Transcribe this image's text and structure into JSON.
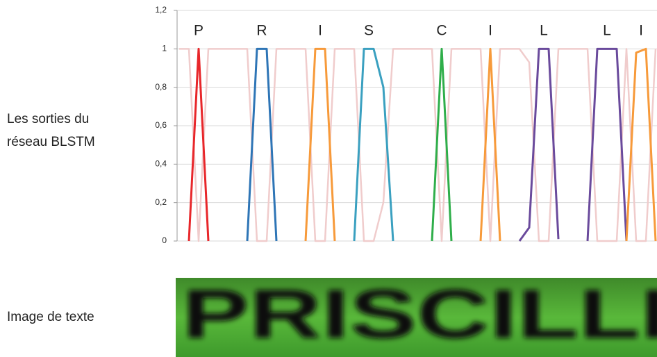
{
  "side_labels": {
    "outputs": [
      "Les sorties du",
      "réseau BLSTM"
    ],
    "image": "Image de texte"
  },
  "image_text": "PRISCILLI",
  "chart_data": {
    "type": "line",
    "ylim": [
      0,
      1.2
    ],
    "yticks": [
      0,
      {
        "value": 0.2,
        "label": "0,2"
      },
      {
        "value": 0.4,
        "label": "0,4"
      },
      {
        "value": 0.6,
        "label": "0,6"
      },
      {
        "value": 0.8,
        "label": "0,8"
      },
      1,
      {
        "value": 1.2,
        "label": "1,2"
      }
    ],
    "xlim": [
      0,
      49
    ],
    "grid": true,
    "annotations": [
      {
        "text": "P",
        "x": 2
      },
      {
        "text": "R",
        "x": 8.5
      },
      {
        "text": "I",
        "x": 14.5
      },
      {
        "text": "S",
        "x": 19.5
      },
      {
        "text": "C",
        "x": 27
      },
      {
        "text": "I",
        "x": 32
      },
      {
        "text": "L",
        "x": 37.5
      },
      {
        "text": "L",
        "x": 44
      },
      {
        "text": "I",
        "x": 47.5
      }
    ],
    "series": [
      {
        "color": "#f0cccc",
        "x": [
          0,
          1,
          2,
          3,
          4,
          5,
          6,
          7,
          8,
          9,
          10,
          11,
          12,
          13,
          14,
          15,
          16,
          17,
          18,
          19,
          20,
          21,
          22,
          23,
          24,
          25,
          26,
          27,
          28,
          29,
          30,
          31,
          32,
          33,
          34,
          35,
          36,
          37,
          38,
          39,
          40,
          41,
          42,
          43,
          44,
          45,
          46,
          47,
          48,
          49
        ],
        "values": [
          1,
          1,
          0,
          1,
          1,
          1,
          1,
          1,
          0,
          0,
          1,
          1,
          1,
          1,
          0,
          0,
          1,
          1,
          1,
          0,
          0,
          0.2,
          1,
          1,
          1,
          1,
          1,
          0,
          1,
          1,
          1,
          1,
          0,
          1,
          1,
          1,
          0.93,
          0,
          0,
          1,
          1,
          1,
          1,
          0,
          0,
          0,
          1,
          0,
          0,
          1
        ]
      },
      {
        "color": "#e8262a",
        "x": [
          1,
          2,
          3
        ],
        "values": [
          0,
          1,
          0
        ]
      },
      {
        "color": "#2e75b6",
        "x": [
          7,
          8,
          9,
          10
        ],
        "values": [
          0,
          1,
          1,
          0
        ]
      },
      {
        "color": "#f79a3a",
        "x": [
          13,
          14,
          15,
          16
        ],
        "values": [
          0,
          1,
          1,
          0
        ]
      },
      {
        "color": "#3aa0c0",
        "x": [
          18,
          19,
          20,
          21,
          22
        ],
        "values": [
          0,
          1,
          1,
          0.8,
          0
        ]
      },
      {
        "color": "#2fae4a",
        "x": [
          26,
          27,
          28
        ],
        "values": [
          0,
          1,
          0
        ]
      },
      {
        "color": "#f79a3a",
        "x": [
          31,
          32,
          33
        ],
        "values": [
          0,
          1,
          0
        ]
      },
      {
        "color": "#6a4a9c",
        "x": [
          35,
          36,
          37,
          38,
          39
        ],
        "values": [
          0,
          0.07,
          1,
          1,
          0.01
        ]
      },
      {
        "color": "#6a4a9c",
        "x": [
          42,
          43,
          44,
          45,
          46
        ],
        "values": [
          0,
          1,
          1,
          1,
          0
        ]
      },
      {
        "color": "#f79a3a",
        "x": [
          46,
          47,
          48,
          49
        ],
        "values": [
          0,
          0.98,
          1,
          0
        ]
      }
    ]
  }
}
